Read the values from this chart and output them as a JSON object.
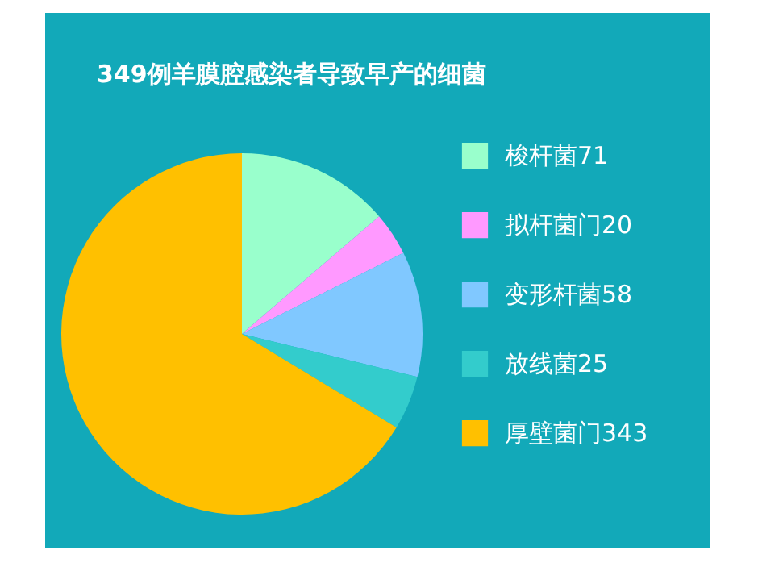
{
  "chart_data": {
    "type": "pie",
    "title": "349例羊膜腔感染者导致早产的细菌",
    "categories": [
      "梭杆菌71",
      "拟杆菌门20",
      "变形杆菌58",
      "放线菌25",
      "厚壁菌门343"
    ],
    "values": [
      71,
      20,
      58,
      25,
      343
    ],
    "colors": [
      "#99ffcc",
      "#ff99ff",
      "#80c8ff",
      "#33cccc",
      "#ffc000"
    ],
    "legend": "right"
  }
}
